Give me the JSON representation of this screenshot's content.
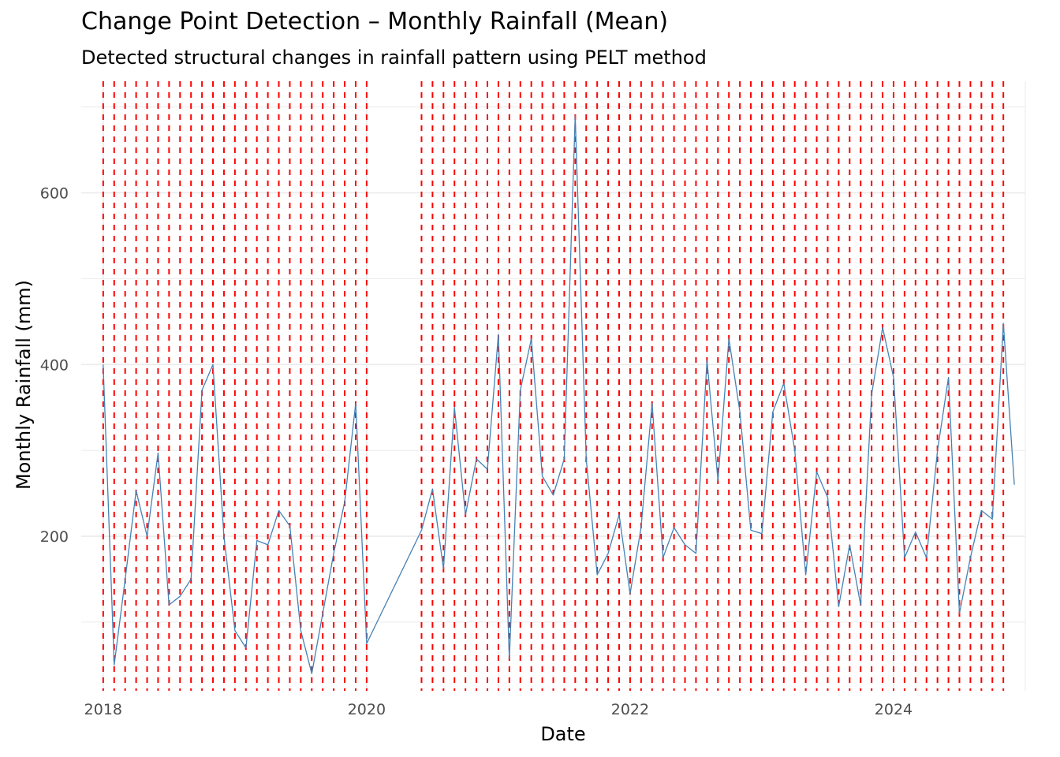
{
  "chart_data": {
    "type": "line",
    "title": "Change Point Detection – Monthly Rainfall (Mean)",
    "subtitle": "Detected structural changes in rainfall pattern using PELT method",
    "xlabel": "Date",
    "ylabel": "Monthly Rainfall (mm)",
    "x_ticks": [
      "2018",
      "2020",
      "2022",
      "2024"
    ],
    "y_ticks": [
      200,
      400,
      600
    ],
    "ylim": [
      20,
      730
    ],
    "xlim": [
      "2017-11",
      "2025-01"
    ],
    "grid": true,
    "colors": {
      "series": "#4682b4",
      "changepoint": "#ff0000",
      "grid": "#ebebeb"
    },
    "series": [
      {
        "x": [
          "2018-01",
          "2018-02",
          "2018-03",
          "2018-04",
          "2018-05",
          "2018-06",
          "2018-07",
          "2018-08",
          "2018-09",
          "2018-10",
          "2018-11",
          "2018-12",
          "2019-01",
          "2019-02",
          "2019-03",
          "2019-04",
          "2019-05",
          "2019-06",
          "2019-07",
          "2019-08",
          "2019-09",
          "2019-10",
          "2019-11",
          "2019-12",
          "2020-01",
          "2020-06",
          "2020-07",
          "2020-08",
          "2020-09",
          "2020-10",
          "2020-11",
          "2020-12",
          "2021-01",
          "2021-02",
          "2021-03",
          "2021-04",
          "2021-05",
          "2021-06",
          "2021-07",
          "2021-08",
          "2021-09",
          "2021-10",
          "2021-11",
          "2021-12",
          "2022-01",
          "2022-02",
          "2022-03",
          "2022-04",
          "2022-05",
          "2022-06",
          "2022-07",
          "2022-08",
          "2022-09",
          "2022-10",
          "2022-11",
          "2022-12",
          "2023-01",
          "2023-02",
          "2023-03",
          "2023-04",
          "2023-05",
          "2023-06",
          "2023-07",
          "2023-08",
          "2023-09",
          "2023-10",
          "2023-11",
          "2023-12",
          "2024-01",
          "2024-02",
          "2024-03",
          "2024-04",
          "2024-05",
          "2024-06",
          "2024-07",
          "2024-08",
          "2024-09",
          "2024-10",
          "2024-11",
          "2024-12"
        ],
        "values": [
          400,
          50,
          150,
          253,
          200,
          297,
          120,
          130,
          150,
          370,
          400,
          200,
          90,
          70,
          195,
          190,
          230,
          212,
          90,
          40,
          110,
          180,
          240,
          355,
          75,
          207,
          255,
          162,
          350,
          225,
          290,
          278,
          435,
          57,
          370,
          430,
          270,
          248,
          290,
          690,
          290,
          155,
          180,
          225,
          133,
          210,
          355,
          175,
          210,
          190,
          180,
          405,
          265,
          430,
          345,
          207,
          203,
          345,
          378,
          300,
          155,
          275,
          245,
          118,
          190,
          120,
          365,
          443,
          385,
          175,
          205,
          175,
          300,
          385,
          110,
          175,
          230,
          220,
          448,
          260
        ]
      }
    ],
    "change_points": [
      "2018-01",
      "2018-02",
      "2018-03",
      "2018-04",
      "2018-05",
      "2018-06",
      "2018-07",
      "2018-08",
      "2018-09",
      "2018-10",
      "2018-11",
      "2018-12",
      "2019-01",
      "2019-02",
      "2019-03",
      "2019-04",
      "2019-05",
      "2019-06",
      "2019-07",
      "2019-08",
      "2019-09",
      "2019-10",
      "2019-11",
      "2019-12",
      "2020-01",
      "2020-06",
      "2020-07",
      "2020-08",
      "2020-09",
      "2020-10",
      "2020-11",
      "2020-12",
      "2021-01",
      "2021-02",
      "2021-03",
      "2021-04",
      "2021-05",
      "2021-06",
      "2021-07",
      "2021-08",
      "2021-09",
      "2021-10",
      "2021-11",
      "2021-12",
      "2022-01",
      "2022-02",
      "2022-03",
      "2022-04",
      "2022-05",
      "2022-06",
      "2022-07",
      "2022-08",
      "2022-09",
      "2022-10",
      "2022-11",
      "2022-12",
      "2023-01",
      "2023-02",
      "2023-03",
      "2023-04",
      "2023-05",
      "2023-06",
      "2023-07",
      "2023-08",
      "2023-09",
      "2023-10",
      "2023-11",
      "2023-12",
      "2024-01",
      "2024-02",
      "2024-03",
      "2024-04",
      "2024-05",
      "2024-06",
      "2024-07",
      "2024-08",
      "2024-09",
      "2024-10",
      "2024-11"
    ]
  }
}
